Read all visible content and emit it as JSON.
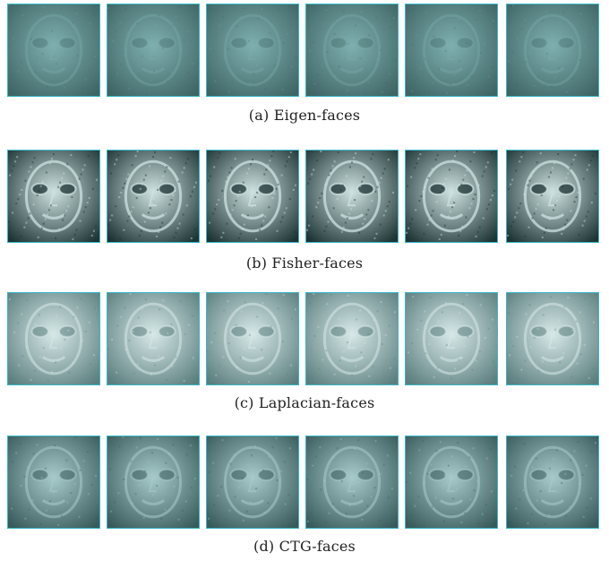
{
  "figure": {
    "panels": [
      {
        "id": "a",
        "caption": "(a) Eigen-faces",
        "style": "eigen"
      },
      {
        "id": "b",
        "caption": "(b) Fisher-faces",
        "style": "fisher"
      },
      {
        "id": "c",
        "caption": "(c) Laplacian-faces",
        "style": "laplacian"
      },
      {
        "id": "d",
        "caption": "(d) CTG-faces",
        "style": "ctg"
      }
    ],
    "faces_per_panel": 6,
    "colors": {
      "eigen": [
        "#3f6464",
        "#7fb0b0"
      ],
      "fisher": [
        "#1d3434",
        "#cfe2e2"
      ],
      "laplacian": [
        "#5b7e7e",
        "#d7e8e8"
      ],
      "ctg": [
        "#385a5a",
        "#a7caca"
      ]
    }
  }
}
